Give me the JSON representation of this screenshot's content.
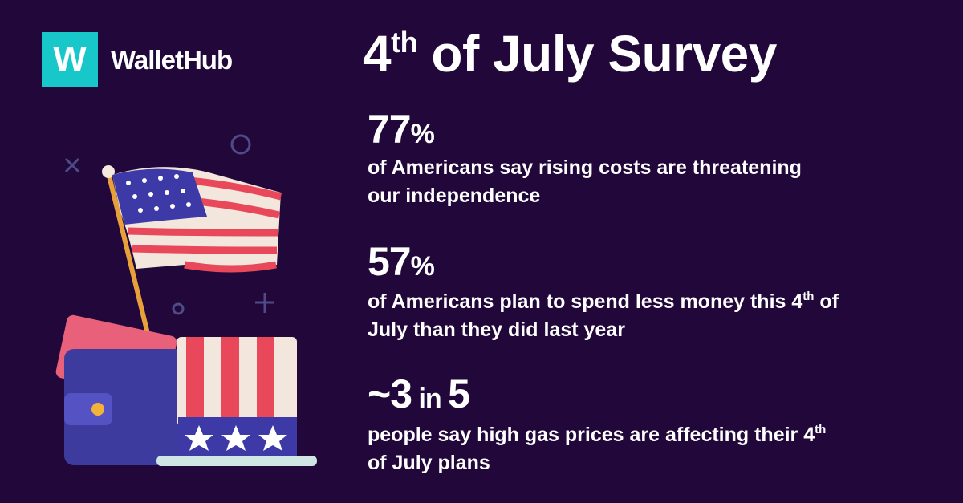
{
  "logo": {
    "mark": "W",
    "name": "WalletHub"
  },
  "title": {
    "number": "4",
    "suffix": "th",
    "rest": " of July Survey"
  },
  "stats": [
    {
      "figure": [
        "77",
        "%"
      ],
      "lines": [
        [
          "of Americans say rising costs are threatening"
        ],
        [
          "our independence"
        ]
      ]
    },
    {
      "figure": [
        "57",
        "%"
      ],
      "lines": [
        [
          "of Americans plan to spend less money this 4",
          "th",
          " of"
        ],
        [
          "July than they did last year"
        ]
      ]
    },
    {
      "figure": [
        "~3",
        " in ",
        "5"
      ],
      "lines": [
        [
          "people say high gas prices are affecting their 4",
          "th"
        ],
        [
          "of July plans"
        ]
      ]
    }
  ]
}
